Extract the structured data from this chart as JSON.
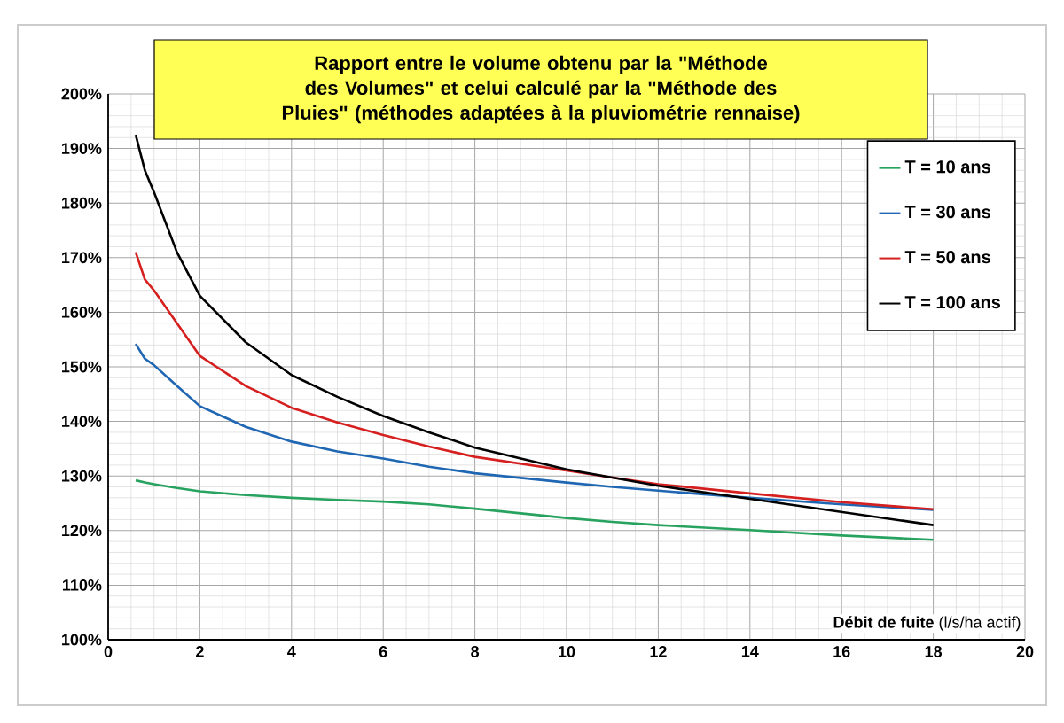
{
  "chart_data": {
    "type": "line",
    "title": "Rapport entre le volume obtenu par la \"Méthode des Volumes\" et celui calculé par la \"Méthode des Pluies\" (méthodes adaptées à la pluviométrie rennaise)",
    "xlabel": "**Débit de fuite** (l/s/ha actif)",
    "xlim": [
      0,
      20
    ],
    "xticks": [
      0,
      2,
      4,
      6,
      8,
      10,
      12,
      14,
      16,
      18,
      20
    ],
    "ylim": [
      100,
      200
    ],
    "yticks": [
      {
        "value": 100,
        "label": "100%"
      },
      {
        "value": 110,
        "label": "110%"
      },
      {
        "value": 120,
        "label": "120%"
      },
      {
        "value": 130,
        "label": "130%"
      },
      {
        "value": 140,
        "label": "140%"
      },
      {
        "value": 150,
        "label": "150%"
      },
      {
        "value": 160,
        "label": "160%"
      },
      {
        "value": 170,
        "label": "170%"
      },
      {
        "value": 180,
        "label": "180%"
      },
      {
        "value": 190,
        "label": "190%"
      },
      {
        "value": 200,
        "label": "200%"
      }
    ],
    "grid": true,
    "legend": "top right",
    "marker": "none",
    "line_style": "solid",
    "x": [
      0.6,
      0.8,
      1,
      1.5,
      2,
      3,
      4,
      5,
      6,
      7,
      8,
      10,
      11,
      12,
      14,
      16,
      18
    ],
    "series": [
      {
        "name": "T = 10 ans",
        "color": "#27a35f",
        "values": [
          129.2,
          128.8,
          128.5,
          127.8,
          127.2,
          126.5,
          126,
          125.6,
          125.3,
          124.8,
          124,
          122.3,
          121.6,
          121,
          120.1,
          119.1,
          118.3
        ]
      },
      {
        "name": "T = 30 ans",
        "color": "#2067b3",
        "values": [
          154.2,
          151.5,
          150.3,
          146.5,
          142.8,
          139,
          136.3,
          134.5,
          133.2,
          131.7,
          130.5,
          128.8,
          128,
          127.3,
          126,
          124.8,
          123.8
        ]
      },
      {
        "name": "T = 50 ans",
        "color": "#d62020",
        "values": [
          171,
          166,
          164,
          158,
          152,
          146.5,
          142.5,
          139.8,
          137.5,
          135.4,
          133.5,
          131,
          129.7,
          128.5,
          126.8,
          125.2,
          123.9
        ]
      },
      {
        "name": "T = 100 ans",
        "color": "#000000",
        "values": [
          192.5,
          186,
          182,
          171,
          163,
          154.5,
          148.5,
          144.5,
          141,
          138,
          135.2,
          131.2,
          129.7,
          128.2,
          125.8,
          123.4,
          121
        ]
      }
    ]
  }
}
